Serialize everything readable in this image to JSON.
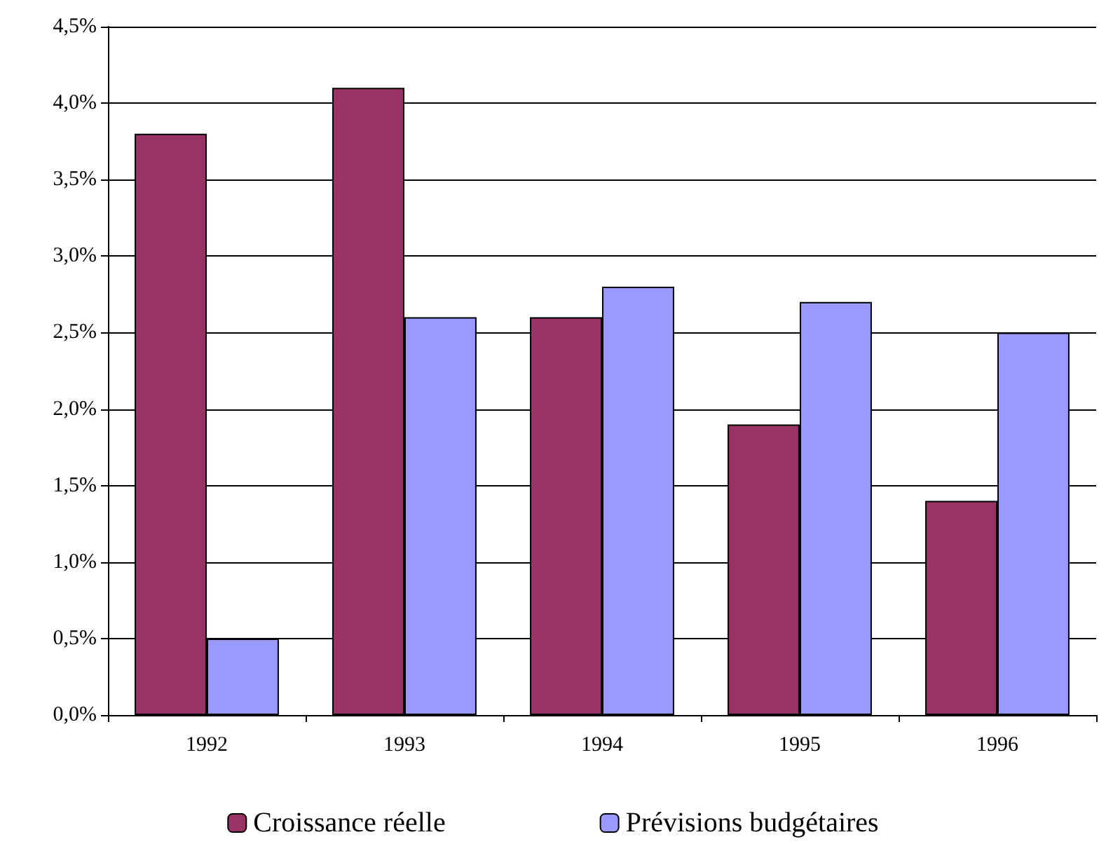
{
  "chart_data": {
    "type": "bar",
    "categories": [
      "1992",
      "1993",
      "1994",
      "1995",
      "1996"
    ],
    "series": [
      {
        "name": "Croissance réelle",
        "color": "#993366",
        "values": [
          3.8,
          4.1,
          2.6,
          1.9,
          1.4
        ]
      },
      {
        "name": "Prévisions budgétaires",
        "color": "#9999ff",
        "values": [
          0.5,
          2.6,
          2.8,
          2.7,
          2.5
        ]
      }
    ],
    "ylim": [
      0,
      4.5
    ],
    "yticks": [
      {
        "value": 0,
        "label": "0,0%"
      },
      {
        "value": 0.5,
        "label": "0,5%"
      },
      {
        "value": 1,
        "label": "1,0%"
      },
      {
        "value": 1.5,
        "label": "1,5%"
      },
      {
        "value": 2,
        "label": "2,0%"
      },
      {
        "value": 2.5,
        "label": "2,5%"
      },
      {
        "value": 3,
        "label": "3,0%"
      },
      {
        "value": 3.5,
        "label": "3,5%"
      },
      {
        "value": 4,
        "label": "4,0%"
      },
      {
        "value": 4.5,
        "label": "4,5%"
      }
    ],
    "grid": "y",
    "legend": "bottom"
  }
}
